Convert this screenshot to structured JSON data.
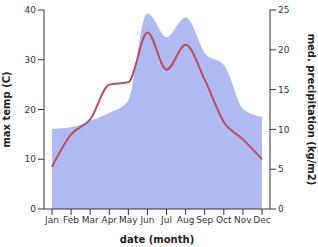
{
  "chart_data": {
    "type": "line",
    "x_label": "date (month)",
    "y_label": "max temp (C)",
    "y2_label": "med. precipitation (kg/m2)",
    "categories": [
      "Jan",
      "Feb",
      "Mar",
      "Apr",
      "May",
      "Jun",
      "Jul",
      "Aug",
      "Sep",
      "Oct",
      "Nov",
      "Dec"
    ],
    "series": [
      {
        "type": "area",
        "axis": "y2",
        "color": "#a9b3ee",
        "values": [
          10,
          10.2,
          11,
          12,
          13.5,
          24.5,
          21.5,
          24,
          19.5,
          18,
          12.5,
          11.5
        ]
      },
      {
        "type": "line",
        "color": "#b5505e",
        "values": [
          8.5,
          15,
          18,
          25,
          25.5,
          35.5,
          28,
          33,
          26,
          17.5,
          14,
          10
        ]
      }
    ],
    "ylim": [
      0,
      40
    ],
    "yticks": [
      0,
      10,
      20,
      30,
      40
    ],
    "y2lim": [
      0,
      25
    ],
    "y2ticks": [
      0,
      5,
      10,
      15,
      20,
      25
    ]
  }
}
